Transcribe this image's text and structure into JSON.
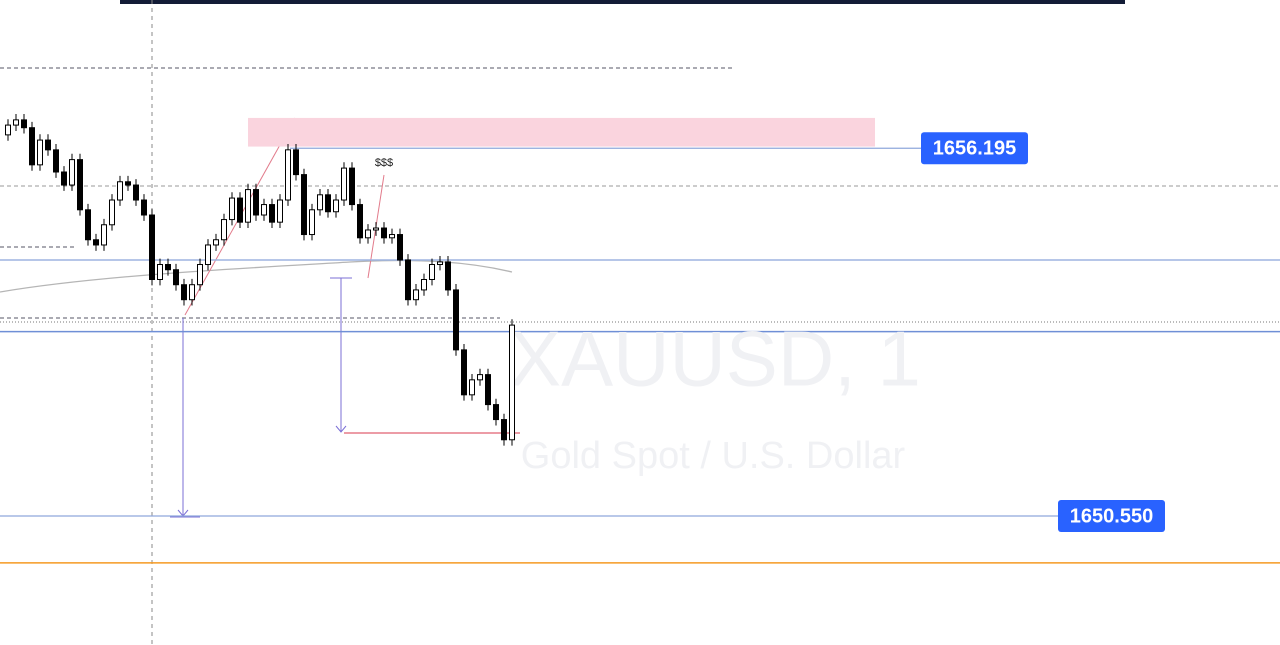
{
  "chart_data": {
    "type": "candlestick",
    "watermark_symbol": "XAUUSD, 1",
    "watermark_name": "Gold Spot / U.S. Dollar",
    "annotation": "$$$",
    "ylim": [
      1648.57,
      1658.47
    ],
    "up_color": "#ffffff",
    "down_color": "#000000",
    "wick_color": "#000000",
    "price_lines": [
      1656.195,
      {
        "value": 1650.55,
        "label": "1650.550"
      }
    ],
    "price_label_color": "#2962ff",
    "levels": [
      {
        "value": 1654.48,
        "color": "#9db3e0"
      },
      {
        "value": 1653.38,
        "color": "#6f8fd6"
      },
      {
        "value": 1649.83,
        "color": "#f59a23"
      }
    ],
    "zone": {
      "ylim": [
        1656.22,
        1656.66
      ],
      "color": "#fad4de"
    },
    "open": [
      1656.4,
      1656.55,
      1656.63,
      1656.51,
      1655.94,
      1656.32,
      1656.17,
      1655.83,
      1655.63,
      1656.02,
      1655.25,
      1654.79,
      1654.71,
      1655.02,
      1655.4,
      1655.68,
      1655.63,
      1655.4,
      1655.17,
      1654.18,
      1654.41,
      1654.33,
      1654.1,
      1653.87,
      1654.1,
      1654.41,
      1654.71,
      1654.79,
      1655.1,
      1655.43,
      1655.06,
      1655.56,
      1655.17,
      1655.33,
      1655.06,
      1655.4,
      1656.17,
      1655.79,
      1654.87,
      1655.25,
      1655.48,
      1655.22,
      1655.4,
      1655.89,
      1655.33,
      1654.82,
      1654.94,
      1654.97,
      1654.82,
      1654.87,
      1654.48,
      1653.87,
      1654.02,
      1654.18,
      1654.41,
      1654.45,
      1654.02,
      1653.1,
      1652.41,
      1652.64,
      1652.72,
      1652.26,
      1652.03,
      1651.72
    ],
    "high": [
      1656.64,
      1656.72,
      1656.72,
      1656.6,
      1656.41,
      1656.41,
      1656.26,
      1655.92,
      1656.11,
      1656.11,
      1655.34,
      1654.88,
      1655.11,
      1655.49,
      1655.77,
      1655.77,
      1655.72,
      1655.49,
      1655.26,
      1654.5,
      1654.5,
      1654.42,
      1654.19,
      1654.19,
      1654.5,
      1654.8,
      1654.88,
      1655.19,
      1655.52,
      1655.52,
      1655.65,
      1655.65,
      1655.42,
      1655.42,
      1655.49,
      1656.26,
      1656.26,
      1655.88,
      1655.34,
      1655.57,
      1655.57,
      1655.49,
      1655.98,
      1655.98,
      1655.42,
      1655.03,
      1655.06,
      1655.06,
      1654.96,
      1654.96,
      1654.57,
      1654.11,
      1654.27,
      1654.5,
      1654.54,
      1654.54,
      1654.11,
      1653.19,
      1652.73,
      1652.81,
      1652.81,
      1652.35,
      1652.12,
      1653.57
    ],
    "low": [
      1656.31,
      1656.46,
      1656.42,
      1655.85,
      1655.85,
      1656.08,
      1655.74,
      1655.54,
      1655.54,
      1655.16,
      1654.7,
      1654.62,
      1654.62,
      1654.93,
      1655.31,
      1655.54,
      1655.31,
      1655.08,
      1654.09,
      1654.09,
      1654.24,
      1654.01,
      1653.78,
      1653.78,
      1654.01,
      1654.32,
      1654.62,
      1654.7,
      1655.01,
      1654.97,
      1654.97,
      1655.08,
      1655.08,
      1654.97,
      1654.97,
      1655.31,
      1655.7,
      1654.78,
      1654.78,
      1655.16,
      1655.13,
      1655.13,
      1655.31,
      1655.24,
      1654.73,
      1654.73,
      1654.85,
      1654.73,
      1654.73,
      1654.39,
      1653.78,
      1653.78,
      1653.93,
      1654.09,
      1654.32,
      1653.93,
      1653.01,
      1652.32,
      1652.32,
      1652.55,
      1652.17,
      1651.94,
      1651.63,
      1651.63
    ],
    "close": [
      1656.55,
      1656.63,
      1656.51,
      1655.94,
      1656.32,
      1656.17,
      1655.83,
      1655.63,
      1656.02,
      1655.25,
      1654.79,
      1654.71,
      1655.02,
      1655.4,
      1655.68,
      1655.63,
      1655.4,
      1655.17,
      1654.18,
      1654.41,
      1654.33,
      1654.1,
      1653.87,
      1654.1,
      1654.41,
      1654.71,
      1654.79,
      1655.1,
      1655.43,
      1655.06,
      1655.56,
      1655.17,
      1655.33,
      1655.06,
      1655.4,
      1656.17,
      1655.79,
      1654.87,
      1655.25,
      1655.48,
      1655.22,
      1655.4,
      1655.89,
      1655.33,
      1654.82,
      1654.94,
      1654.97,
      1654.82,
      1654.87,
      1654.48,
      1653.87,
      1654.02,
      1654.18,
      1654.41,
      1654.45,
      1654.02,
      1653.1,
      1652.41,
      1652.64,
      1652.72,
      1652.26,
      1652.03,
      1651.72,
      1653.48
    ]
  }
}
